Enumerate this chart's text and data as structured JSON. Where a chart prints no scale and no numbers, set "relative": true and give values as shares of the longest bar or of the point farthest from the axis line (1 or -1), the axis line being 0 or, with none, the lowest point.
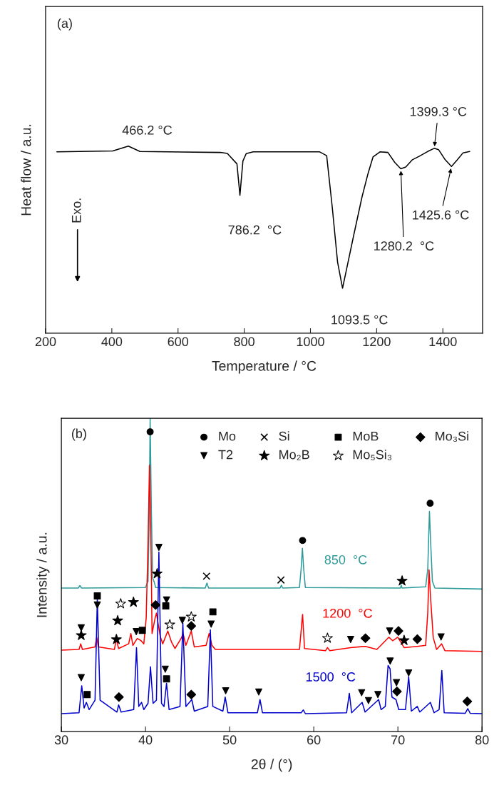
{
  "chart_data": [
    {
      "type": "line",
      "relative": true,
      "xlabel": "Temperature / °C",
      "ylabel": "Heat flow / a.u.",
      "xlim": [
        200,
        1520
      ],
      "xticks": [
        200,
        400,
        600,
        800,
        1000,
        1200,
        1400
      ],
      "tick_labels": "x",
      "x": [
        234,
        403,
        450,
        485,
        728,
        749,
        778,
        787,
        796,
        806,
        827,
        1028,
        1049,
        1066,
        1082,
        1097,
        1111,
        1131,
        1156,
        1173,
        1189,
        1210,
        1234,
        1255,
        1273,
        1288,
        1308,
        1329,
        1354,
        1374,
        1387,
        1407,
        1426,
        1444,
        1461,
        1481
      ],
      "values": [
        0.969,
        0.974,
        1.0,
        0.971,
        0.966,
        0.961,
        0.905,
        0.737,
        0.92,
        0.96,
        0.969,
        0.969,
        0.949,
        0.672,
        0.38,
        0.241,
        0.358,
        0.526,
        0.73,
        0.847,
        0.942,
        0.969,
        0.966,
        0.912,
        0.879,
        0.888,
        0.927,
        0.946,
        0.971,
        0.988,
        0.981,
        0.927,
        0.891,
        0.927,
        0.964,
        0.971
      ],
      "color": "#000000",
      "annotations": [
        "(a)",
        "Exo.",
        {
          "text": "466.2 °C",
          "x": 450,
          "y": 1.0
        },
        {
          "text": "786.2  °C",
          "x": 787,
          "y": 0.737
        },
        {
          "text": "1093.5 °C",
          "x": 1097,
          "y": 0.241
        },
        {
          "text": "1280.2  °C",
          "x": 1273,
          "y": 0.879
        },
        {
          "text": "1399.3 °C",
          "x": 1374,
          "y": 0.988
        },
        {
          "text": "1425.6 °C",
          "x": 1426,
          "y": 0.891
        }
      ]
    },
    {
      "type": "line",
      "relative": true,
      "xlabel": "2θ / (°)",
      "ylabel": "Intensity / a.u.",
      "xlim": [
        30,
        80
      ],
      "xticks": [
        30,
        40,
        50,
        60,
        70,
        80
      ],
      "tick_labels": "x",
      "legend": "top right",
      "annotations": [
        "(b)"
      ],
      "series": [
        {
          "name": "850  °C",
          "type": "line",
          "color": "#2e9a9a",
          "x": [
            30,
            32.0,
            32.2,
            32.4,
            40.0,
            40.3,
            40.45,
            40.55,
            40.7,
            40.85,
            41.05,
            41.2,
            47.1,
            47.3,
            47.5,
            56.0,
            56.15,
            56.3,
            58.3,
            58.5,
            58.65,
            58.8,
            59.0,
            70.3,
            70.4,
            70.5,
            73.3,
            73.55,
            73.75,
            73.9,
            74.1,
            74.4,
            80
          ],
          "values": [
            0.458,
            0.458,
            0.466,
            0.458,
            0.46,
            0.48,
            0.7,
            1.0,
            0.7,
            0.49,
            0.476,
            0.46,
            0.458,
            0.474,
            0.458,
            0.458,
            0.467,
            0.458,
            0.46,
            0.52,
            0.585,
            0.52,
            0.46,
            0.458,
            0.467,
            0.458,
            0.462,
            0.52,
            0.703,
            0.6,
            0.48,
            0.458,
            0.455
          ]
        },
        {
          "name": "1200  °C",
          "type": "line",
          "color": "#ff0000",
          "x": [
            30,
            32.1,
            32.3,
            32.5,
            34.0,
            34.2,
            34.4,
            36.3,
            36.54,
            36.8,
            38.0,
            38.26,
            38.5,
            39.02,
            39.47,
            39.8,
            40.08,
            40.3,
            40.47,
            40.65,
            40.78,
            41.14,
            41.3,
            41.74,
            42.05,
            42.65,
            43.1,
            43.5,
            44.23,
            44.47,
            44.8,
            45.44,
            45.8,
            47.2,
            47.56,
            47.9,
            48.3,
            58.3,
            58.67,
            58.9,
            61.4,
            61.63,
            61.9,
            64.38,
            66.14,
            67.5,
            68.92,
            69.38,
            69.98,
            70.74,
            72.31,
            73.3,
            73.55,
            73.7,
            73.9,
            74.2,
            74.6,
            75.19,
            75.6,
            80
          ],
          "values": [
            0.26,
            0.262,
            0.28,
            0.262,
            0.27,
            0.301,
            0.27,
            0.262,
            0.295,
            0.265,
            0.28,
            0.313,
            0.275,
            0.297,
            0.29,
            0.28,
            0.362,
            0.6,
            0.85,
            0.6,
            0.313,
            0.362,
            0.378,
            0.305,
            0.28,
            0.321,
            0.285,
            0.265,
            0.297,
            0.313,
            0.275,
            0.321,
            0.27,
            0.275,
            0.313,
            0.275,
            0.262,
            0.262,
            0.374,
            0.265,
            0.258,
            0.268,
            0.258,
            0.268,
            0.272,
            0.262,
            0.301,
            0.29,
            0.301,
            0.268,
            0.272,
            0.275,
            0.38,
            0.516,
            0.42,
            0.3,
            0.262,
            0.28,
            0.258,
            0.256
          ]
        },
        {
          "name": "1500  °C",
          "type": "line",
          "color": "#0000cc",
          "x": [
            30,
            32.1,
            32.42,
            32.7,
            32.97,
            33.3,
            34.0,
            34.27,
            34.6,
            36.6,
            36.81,
            37.1,
            38.6,
            38.93,
            39.2,
            39.53,
            39.8,
            40.3,
            40.59,
            40.9,
            41.3,
            41.59,
            41.9,
            42.2,
            42.5,
            42.8,
            44.1,
            44.44,
            44.8,
            45.5,
            45.8,
            47.4,
            47.71,
            48.0,
            49.2,
            49.47,
            49.8,
            53.3,
            53.61,
            53.9,
            58.5,
            58.76,
            59.0,
            63.9,
            64.23,
            64.5,
            65.75,
            66.1,
            67.71,
            68.0,
            68.5,
            68.83,
            69.07,
            69.29,
            69.77,
            70.1,
            70.9,
            71.28,
            71.6,
            72.3,
            72.6,
            73.86,
            74.3,
            74.9,
            75.22,
            75.5,
            78.0,
            78.31,
            78.6,
            80
          ],
          "values": [
            0.057,
            0.06,
            0.146,
            0.075,
            0.093,
            0.07,
            0.1,
            0.423,
            0.1,
            0.062,
            0.085,
            0.062,
            0.07,
            0.268,
            0.08,
            0.093,
            0.07,
            0.09,
            0.207,
            0.09,
            0.1,
            0.573,
            0.09,
            0.08,
            0.154,
            0.07,
            0.08,
            0.346,
            0.08,
            0.102,
            0.065,
            0.08,
            0.325,
            0.08,
            0.065,
            0.11,
            0.06,
            0.06,
            0.102,
            0.06,
            0.06,
            0.069,
            0.057,
            0.06,
            0.122,
            0.06,
            0.093,
            0.062,
            0.102,
            0.07,
            0.08,
            0.211,
            0.2,
            0.11,
            0.102,
            0.07,
            0.07,
            0.175,
            0.065,
            0.08,
            0.062,
            0.093,
            0.06,
            0.07,
            0.195,
            0.06,
            0.058,
            0.073,
            0.058,
            0.057
          ]
        },
        {
          "name": "Mo",
          "type": "scatter",
          "marker": "circle",
          "color": "#000000",
          "x": [
            40.55,
            58.67,
            73.83
          ],
          "values": [
            0.957,
            0.61,
            0.729
          ]
        },
        {
          "name": "Si",
          "type": "scatter",
          "marker": "cross",
          "color": "#000000",
          "x": [
            47.26,
            56.1
          ],
          "values": [
            0.496,
            0.484
          ]
        },
        {
          "name": "MoB",
          "type": "scatter",
          "marker": "square",
          "color": "#000000",
          "x": [
            34.27,
            33.06,
            39.62,
            42.41,
            42.5,
            48.01
          ],
          "values": [
            0.433,
            0.118,
            0.323,
            0.401,
            0.168,
            0.382
          ]
        },
        {
          "name": "Mo₃Si",
          "type": "scatter",
          "marker": "diamond",
          "color": "#000000",
          "x": [
            36.84,
            41.2,
            45.44,
            45.44,
            66.14,
            70.07,
            72.31,
            69.89,
            78.25
          ],
          "values": [
            0.11,
            0.404,
            0.337,
            0.118,
            0.298,
            0.321,
            0.295,
            0.128,
            0.096
          ]
        },
        {
          "name": "T2",
          "type": "scatter",
          "marker": "triangle",
          "color": "#000000",
          "x": [
            32.36,
            34.27,
            38.9,
            41.59,
            42.5,
            42.35,
            32.36,
            44.38,
            47.8,
            49.53,
            53.46,
            64.38,
            69.02,
            75.13,
            69.08,
            71.28,
            65.69,
            66.5,
            67.62,
            69.83
          ],
          "values": [
            0.331,
            0.404,
            0.319,
            0.588,
            0.42,
            0.199,
            0.172,
            0.355,
            0.343,
            0.13,
            0.126,
            0.294,
            0.321,
            0.302,
            0.225,
            0.187,
            0.124,
            0.099,
            0.118,
            0.156
          ]
        },
        {
          "name": "Mo₂B",
          "type": "scatter",
          "marker": "star",
          "color": "#000000",
          "x": [
            32.36,
            36.69,
            36.54,
            38.57,
            41.38,
            70.5,
            70.74
          ],
          "values": [
            0.307,
            0.354,
            0.294,
            0.413,
            0.504,
            0.481,
            0.291
          ]
        },
        {
          "name": "Mo₅Si₃",
          "type": "scatter",
          "marker": "star",
          "color": "#ffffff",
          "x": [
            37.05,
            42.89,
            45.44,
            61.63
          ],
          "values": [
            0.408,
            0.341,
            0.366,
            0.298
          ]
        }
      ]
    }
  ]
}
